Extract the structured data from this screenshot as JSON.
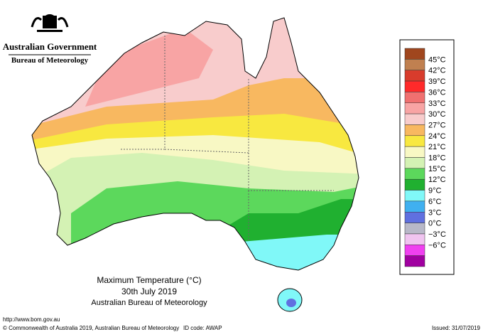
{
  "header": {
    "government": "Australian Government",
    "bureau": "Bureau of Meteorology"
  },
  "legend": {
    "labels": [
      "45°C",
      "42°C",
      "39°C",
      "36°C",
      "33°C",
      "30°C",
      "27°C",
      "24°C",
      "21°C",
      "18°C",
      "15°C",
      "12°C",
      "9°C",
      "6°C",
      "3°C",
      "0°C",
      "−3°C",
      "−6°C"
    ],
    "colors": [
      "#a0461e",
      "#c08050",
      "#d83c2c",
      "#ff2a2a",
      "#f07070",
      "#f8a4a4",
      "#f8cccc",
      "#f8b860",
      "#f8e840",
      "#f8f8c4",
      "#d4f2b4",
      "#5cd85c",
      "#20b030",
      "#80f8f8",
      "#40b0f0",
      "#6070e0",
      "#b8b8c8",
      "#f0c4f0",
      "#f040f0",
      "#a000a0"
    ]
  },
  "title": {
    "line1": "Maximum Temperature (°C)",
    "line2": "30th July 2019",
    "line3": "Australian Bureau of Meteorology"
  },
  "footer": {
    "url": "http://www.bom.gov.au",
    "copyright": "© Commonwealth of Australia 2019, Australian Bureau of Meteorology",
    "id_code": "ID code: AWAP",
    "issued": "Issued: 31/07/2019"
  }
}
